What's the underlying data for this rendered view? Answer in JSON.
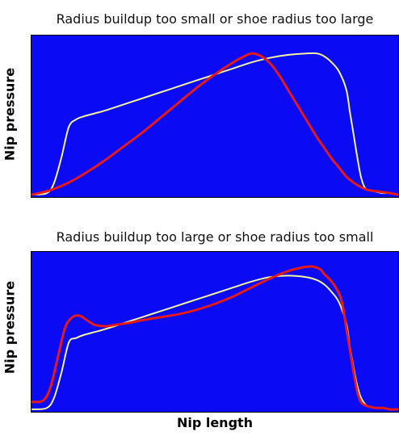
{
  "chart_data": [
    {
      "type": "line",
      "title": "Radius buildup too small or shoe radius too large",
      "xlabel": "",
      "ylabel": "Nip pressure",
      "xlim": [
        0,
        100
      ],
      "ylim": [
        0,
        100
      ],
      "grid": false,
      "colors": {
        "background": "#0a0af5",
        "frame": "#000000"
      },
      "series": [
        {
          "color": "#f2f2a0",
          "x": [
            0,
            4,
            6,
            8,
            10,
            12,
            14,
            17,
            20,
            25,
            30,
            35,
            40,
            45,
            50,
            55,
            60,
            65,
            70,
            75,
            78,
            80,
            82,
            84,
            86,
            87,
            88,
            89,
            90,
            91,
            92,
            94,
            96,
            98,
            100
          ],
          "y": [
            0,
            1,
            8,
            25,
            45,
            50,
            52,
            54,
            56,
            60,
            64,
            68,
            72,
            76,
            80,
            84,
            88,
            91,
            93,
            94,
            94,
            92,
            88,
            82,
            70,
            55,
            40,
            25,
            12,
            5,
            3,
            2,
            1,
            1,
            0
          ]
        },
        {
          "color": "#e61919",
          "x": [
            0,
            5,
            10,
            15,
            20,
            25,
            30,
            35,
            40,
            45,
            50,
            55,
            58,
            60,
            62,
            64,
            66,
            68,
            70,
            72,
            74,
            76,
            78,
            80,
            82,
            84,
            86,
            88,
            90,
            92,
            95,
            98,
            100
          ],
          "y": [
            0,
            3,
            8,
            15,
            23,
            32,
            41,
            51,
            61,
            71,
            80,
            88,
            92,
            94,
            93,
            90,
            85,
            78,
            70,
            62,
            54,
            46,
            38,
            31,
            24,
            18,
            12,
            8,
            5,
            3,
            2,
            1,
            0
          ]
        }
      ]
    },
    {
      "type": "line",
      "title": "Radius buildup too large or shoe radius too small",
      "xlabel": "Nip length",
      "ylabel": "Nip pressure",
      "xlim": [
        0,
        100
      ],
      "ylim": [
        0,
        100
      ],
      "grid": false,
      "colors": {
        "background": "#0a0af5",
        "frame": "#000000"
      },
      "series": [
        {
          "color": "#f2f2a0",
          "x": [
            0,
            4,
            6,
            8,
            10,
            12,
            14,
            17,
            20,
            25,
            30,
            35,
            40,
            45,
            50,
            55,
            60,
            65,
            70,
            75,
            78,
            80,
            82,
            84,
            86,
            87,
            88,
            89,
            90,
            91,
            92,
            94,
            96,
            98,
            100
          ],
          "y": [
            0,
            1,
            8,
            25,
            45,
            48,
            50,
            52,
            54,
            58,
            62,
            66,
            70,
            74,
            78,
            82,
            86,
            89,
            90,
            89,
            87,
            84,
            79,
            72,
            58,
            42,
            28,
            16,
            8,
            4,
            2,
            1,
            1,
            0,
            0
          ]
        },
        {
          "color": "#e61919",
          "x": [
            0,
            3,
            5,
            7,
            9,
            11,
            13,
            15,
            17,
            20,
            23,
            26,
            30,
            35,
            40,
            45,
            50,
            55,
            60,
            65,
            70,
            73,
            75,
            77,
            79,
            80,
            82,
            84,
            85,
            86,
            87,
            88,
            89,
            90,
            91,
            92,
            94,
            96,
            98,
            100
          ],
          "y": [
            5,
            6,
            15,
            35,
            55,
            62,
            63,
            60,
            57,
            56,
            57,
            58,
            60,
            62,
            64,
            67,
            71,
            76,
            82,
            88,
            93,
            95,
            96,
            96,
            94,
            91,
            86,
            78,
            70,
            55,
            40,
            25,
            12,
            5,
            3,
            2,
            1,
            1,
            0,
            0
          ]
        }
      ]
    }
  ]
}
